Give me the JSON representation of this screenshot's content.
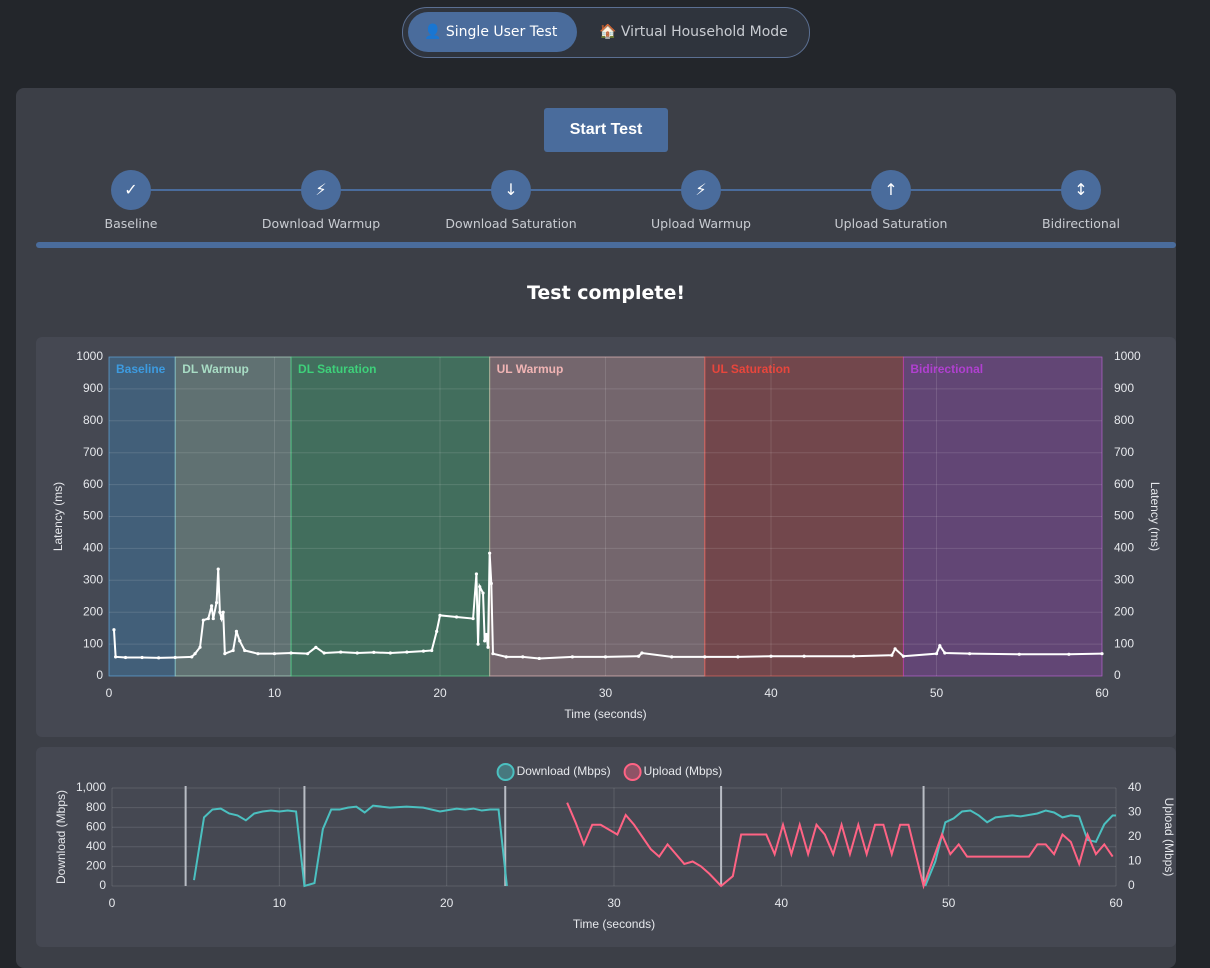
{
  "tabs": [
    {
      "icon": "👤",
      "label": "Single User Test"
    },
    {
      "icon": "🏠",
      "label": "Virtual Household Mode"
    }
  ],
  "start_button": "Start Test",
  "stages": [
    {
      "icon": "✓",
      "label": "Baseline"
    },
    {
      "icon": "⚡",
      "label": "Download Warmup"
    },
    {
      "icon": "↓",
      "label": "Download Saturation"
    },
    {
      "icon": "⚡",
      "label": "Upload Warmup"
    },
    {
      "icon": "↑",
      "label": "Upload Saturation"
    },
    {
      "icon": "↕",
      "label": "Bidirectional"
    }
  ],
  "status": "Test complete!",
  "chart_data": [
    {
      "type": "line",
      "x_label": "Time (seconds)",
      "y_label": "Latency (ms)",
      "y2_label": "Latency (ms)",
      "xlim": [
        0,
        60
      ],
      "xticks": [
        0,
        10,
        20,
        30,
        40,
        50,
        60
      ],
      "ylim": [
        0,
        1000
      ],
      "yticks": [
        0,
        100,
        200,
        300,
        400,
        500,
        600,
        700,
        800,
        900,
        1000
      ],
      "y2lim": [
        0,
        1000
      ],
      "y2ticks": [
        0,
        100,
        200,
        300,
        400,
        500,
        600,
        700,
        800,
        900,
        1000
      ],
      "grid": true,
      "points": true,
      "phases": [
        {
          "label": "Baseline",
          "start": 0,
          "end": 4,
          "color": "#3d9be0"
        },
        {
          "label": "DL Warmup",
          "start": 4,
          "end": 11,
          "color": "#a8dcc4"
        },
        {
          "label": "DL Saturation",
          "start": 11,
          "end": 23,
          "color": "#3ed07a"
        },
        {
          "label": "UL Warmup",
          "start": 23,
          "end": 36,
          "color": "#f0b4b4"
        },
        {
          "label": "UL Saturation",
          "start": 36,
          "end": 48,
          "color": "#e8463c"
        },
        {
          "label": "Bidirectional",
          "start": 48,
          "end": 60,
          "color": "#b040d0"
        }
      ],
      "series": [
        {
          "name": "Latency",
          "color": "#ffffff",
          "x": [
            0.3,
            0.4,
            1,
            2,
            3,
            4,
            5,
            5.2,
            5.5,
            5.7,
            6,
            6.2,
            6.3,
            6.5,
            6.6,
            6.7,
            6.8,
            6.9,
            7,
            7.5,
            7.7,
            7.9,
            8.2,
            9,
            10,
            11,
            12,
            12.5,
            13,
            14,
            15,
            16,
            17,
            18,
            19,
            19.5,
            19.8,
            20,
            21,
            22,
            22.2,
            22.3,
            22.4,
            22.6,
            22.7,
            22.8,
            22.9,
            23,
            23.1,
            23.2,
            24,
            25,
            26,
            28,
            30,
            32,
            32.2,
            34,
            36,
            38,
            40,
            42,
            45,
            47.3,
            47.5,
            48,
            50,
            50.2,
            50.5,
            52,
            55,
            58,
            60
          ],
          "values": [
            145,
            60,
            58,
            58,
            57,
            58,
            60,
            70,
            90,
            175,
            180,
            220,
            180,
            230,
            335,
            200,
            180,
            200,
            70,
            80,
            140,
            110,
            80,
            70,
            70,
            72,
            70,
            90,
            72,
            75,
            72,
            74,
            72,
            75,
            78,
            80,
            140,
            190,
            185,
            180,
            320,
            100,
            280,
            260,
            110,
            130,
            90,
            385,
            290,
            70,
            60,
            60,
            55,
            60,
            60,
            62,
            72,
            60,
            60,
            60,
            62,
            62,
            62,
            65,
            85,
            62,
            70,
            95,
            72,
            70,
            68,
            68,
            70
          ]
        }
      ]
    },
    {
      "type": "line",
      "x_label": "Time (seconds)",
      "y_label": "Download (Mbps)",
      "y2_label": "Upload (Mbps)",
      "xlim": [
        0,
        60
      ],
      "xticks": [
        0,
        10,
        20,
        30,
        40,
        50,
        60
      ],
      "ylim": [
        0,
        1000
      ],
      "yticks": [
        0,
        200,
        400,
        600,
        800,
        {
          "value": 1000,
          "label": "1,000"
        }
      ],
      "y2lim": [
        0,
        40
      ],
      "y2ticks": [
        0,
        10,
        20,
        30,
        40
      ],
      "grid": true,
      "legend": "top",
      "markers": [
        4.4,
        11.5,
        23.5,
        36.4,
        48.5
      ],
      "series": [
        {
          "name": "Download (Mbps)",
          "color": "#4bc0c0",
          "x": [
            4.9,
            5.5,
            6,
            6.5,
            7,
            7.5,
            8,
            8.5,
            9,
            9.5,
            10,
            10.5,
            11,
            11.5,
            12.1,
            12.6,
            13.1,
            13.6,
            14.1,
            14.6,
            15.1,
            15.6,
            16.6,
            17.6,
            18.6,
            19.6,
            20.6,
            21.1,
            21.6,
            22.1,
            22.6,
            23.1,
            23.6,
            36,
            48.6,
            49.2,
            49.8,
            50.3,
            50.8,
            51.3,
            51.8,
            52.3,
            52.8,
            53.8,
            54.3,
            55.3,
            55.8,
            56.3,
            56.8,
            57.3,
            57.8,
            58.3,
            58.8,
            59.3,
            59.8,
            60
          ],
          "values": [
            60,
            700,
            780,
            790,
            740,
            720,
            670,
            740,
            760,
            770,
            760,
            770,
            760,
            0,
            30,
            580,
            780,
            780,
            800,
            810,
            750,
            820,
            800,
            810,
            800,
            760,
            790,
            780,
            790,
            770,
            780,
            780,
            0,
            null,
            0,
            250,
            650,
            690,
            760,
            770,
            720,
            650,
            700,
            720,
            710,
            740,
            770,
            750,
            700,
            720,
            710,
            470,
            450,
            630,
            720,
            720
          ]
        },
        {
          "name": "Upload (Mbps)",
          "color": "#ff6384",
          "axis": "y2",
          "x": [
            27.2,
            27.7,
            28.2,
            28.7,
            29.2,
            29.7,
            30.2,
            30.7,
            31.2,
            31.7,
            32.2,
            32.7,
            33.2,
            33.7,
            34.2,
            34.7,
            35.2,
            35.7,
            36.4,
            37.1,
            37.6,
            38.1,
            38.6,
            39.1,
            39.6,
            40.1,
            40.6,
            41.1,
            41.6,
            42.1,
            42.6,
            43.1,
            43.6,
            44.1,
            44.6,
            45.1,
            45.6,
            46.1,
            46.6,
            47.1,
            47.6,
            48.5,
            49.6,
            50.1,
            50.6,
            51.1,
            52.6,
            54.8,
            55.3,
            55.8,
            56.3,
            56.8,
            57.3,
            57.8,
            58.3,
            58.8,
            59.3,
            59.8
          ],
          "values": [
            34,
            26,
            17,
            25,
            25,
            23,
            21,
            29,
            25,
            20,
            15,
            12,
            17,
            13,
            9,
            10,
            8,
            5,
            0,
            4,
            21,
            21,
            21,
            21,
            13,
            25,
            13,
            25,
            13,
            25,
            21,
            13,
            25,
            13,
            25,
            13,
            25,
            25,
            13,
            25,
            25,
            0,
            21,
            13,
            17,
            12,
            12,
            12,
            17,
            17,
            13,
            21,
            18,
            9,
            21,
            13,
            17,
            12
          ]
        }
      ]
    }
  ]
}
